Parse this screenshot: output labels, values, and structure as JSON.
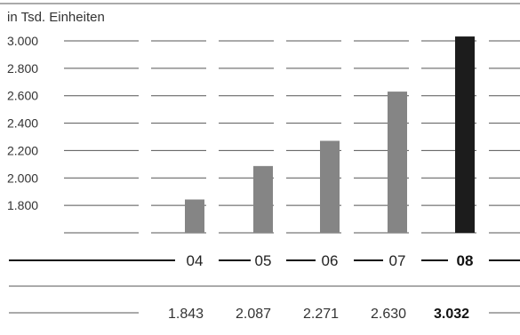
{
  "chart_data": {
    "type": "bar",
    "title": "",
    "unit_label": "in Tsd. Einheiten",
    "xlabel": "",
    "ylabel": "",
    "categories": [
      "04",
      "05",
      "06",
      "07",
      "08"
    ],
    "values": [
      1843,
      2087,
      2271,
      2630,
      3032
    ],
    "value_labels": [
      "1.843",
      "2.087",
      "2.271",
      "2.630",
      "3.032"
    ],
    "highlight_index": 4,
    "y_ticks": [
      {
        "value": 1800,
        "label": "1.800"
      },
      {
        "value": 2000,
        "label": "2.000"
      },
      {
        "value": 2200,
        "label": "2.200"
      },
      {
        "value": 2400,
        "label": "2.400"
      },
      {
        "value": 2600,
        "label": "2.600"
      },
      {
        "value": 2800,
        "label": "2.800"
      },
      {
        "value": 3000,
        "label": "3.000"
      }
    ],
    "ylim": [
      1600,
      3000
    ],
    "grid": true,
    "colors": {
      "bar": "#858585",
      "highlight": "#1c1c1c",
      "grid": "#555555",
      "text": "#333333"
    }
  }
}
